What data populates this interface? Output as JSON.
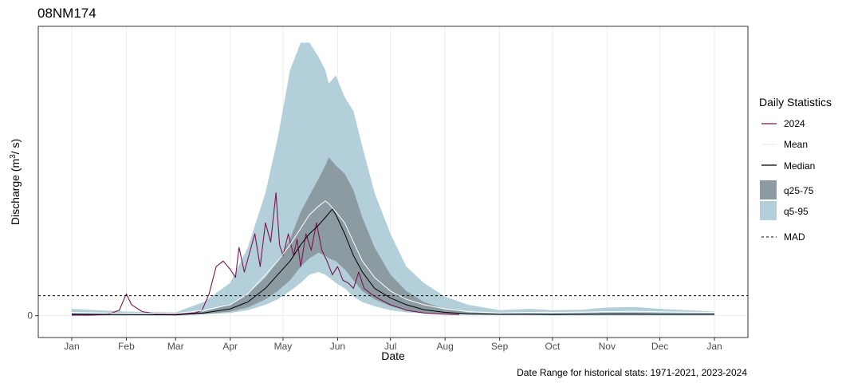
{
  "chart_data": {
    "type": "area",
    "title": "08NM174",
    "xlabel": "Date",
    "ylabel_prefix": "Discharge (m",
    "ylabel_sup": "3",
    "ylabel_suffix": "/ s)",
    "caption": "Date Range for historical stats: 1971-2021, 2023-2024",
    "x_ticks": [
      "Jan",
      "Feb",
      "Mar",
      "Apr",
      "May",
      "Jun",
      "Jul",
      "Aug",
      "Sep",
      "Oct",
      "Nov",
      "Dec",
      "Jan"
    ],
    "x_tick_days": [
      0,
      31,
      59,
      90,
      120,
      151,
      181,
      212,
      243,
      273,
      304,
      334,
      365
    ],
    "xlim": [
      -19,
      384
    ],
    "y_ticks": [
      0
    ],
    "ylim": [
      -0.08,
      1.06
    ],
    "y_units_note": "values relative to peak of q95 band (only tick 0 labelled)",
    "mad": 0.073,
    "legend": {
      "title": "Daily Statistics",
      "position": "right",
      "entries": [
        "2024",
        "Mean",
        "Median",
        "q25-75",
        "q5-95",
        "MAD"
      ]
    },
    "colors": {
      "q5_95": "#b3cfd9",
      "q25_75": "#8c9ba1",
      "median": "#000000",
      "mean": "#ffffff",
      "current_year": "#7a1453",
      "mad": "#000000",
      "grid": "#ebebeb",
      "panel_border": "#333333"
    },
    "series": {
      "q5_q95": {
        "name": "q5-95",
        "day": [
          0,
          31,
          59,
          75,
          90,
          100,
          110,
          117,
          124,
          130,
          135,
          140,
          144,
          146,
          150,
          155,
          160,
          165,
          172,
          181,
          190,
          200,
          212,
          225,
          243,
          260,
          273,
          290,
          304,
          320,
          334,
          350,
          365
        ],
        "low": [
          0.0,
          0.0,
          0.0,
          0.005,
          0.01,
          0.02,
          0.04,
          0.06,
          0.09,
          0.12,
          0.15,
          0.16,
          0.15,
          0.14,
          0.12,
          0.1,
          0.07,
          0.05,
          0.035,
          0.02,
          0.012,
          0.008,
          0.005,
          0.003,
          0.002,
          0.002,
          0.001,
          0.001,
          0.001,
          0.001,
          0.001,
          0.001,
          0.001
        ],
        "high": [
          0.025,
          0.015,
          0.012,
          0.05,
          0.12,
          0.25,
          0.45,
          0.65,
          0.9,
          1.0,
          1.0,
          0.95,
          0.9,
          0.85,
          0.88,
          0.8,
          0.75,
          0.62,
          0.45,
          0.3,
          0.18,
          0.12,
          0.07,
          0.04,
          0.02,
          0.025,
          0.02,
          0.022,
          0.03,
          0.032,
          0.025,
          0.02,
          0.015
        ]
      },
      "q25_q75": {
        "name": "q25-75",
        "day": [
          0,
          31,
          59,
          75,
          90,
          100,
          110,
          117,
          124,
          130,
          135,
          140,
          144,
          146,
          150,
          155,
          160,
          165,
          172,
          181,
          190,
          200,
          212,
          225,
          243,
          260,
          273,
          290,
          304,
          320,
          334,
          350,
          365
        ],
        "low": [
          0.003,
          0.003,
          0.002,
          0.005,
          0.015,
          0.03,
          0.06,
          0.09,
          0.13,
          0.18,
          0.21,
          0.23,
          0.22,
          0.21,
          0.2,
          0.17,
          0.13,
          0.09,
          0.06,
          0.035,
          0.02,
          0.012,
          0.007,
          0.004,
          0.003,
          0.003,
          0.003,
          0.003,
          0.003,
          0.003,
          0.003,
          0.003,
          0.003
        ],
        "high": [
          0.008,
          0.006,
          0.006,
          0.015,
          0.04,
          0.08,
          0.14,
          0.2,
          0.28,
          0.38,
          0.44,
          0.5,
          0.55,
          0.58,
          0.55,
          0.52,
          0.46,
          0.36,
          0.25,
          0.15,
          0.09,
          0.05,
          0.025,
          0.012,
          0.008,
          0.008,
          0.008,
          0.009,
          0.01,
          0.01,
          0.009,
          0.008,
          0.008
        ]
      },
      "median": {
        "name": "Median",
        "day": [
          0,
          31,
          59,
          75,
          90,
          100,
          110,
          117,
          124,
          130,
          135,
          140,
          144,
          148,
          150,
          155,
          160,
          165,
          172,
          181,
          190,
          200,
          212,
          225,
          243,
          260,
          273,
          290,
          304,
          320,
          334,
          350,
          365
        ],
        "values": [
          0.005,
          0.004,
          0.003,
          0.01,
          0.025,
          0.05,
          0.1,
          0.15,
          0.2,
          0.26,
          0.3,
          0.33,
          0.36,
          0.39,
          0.37,
          0.3,
          0.22,
          0.16,
          0.1,
          0.065,
          0.04,
          0.022,
          0.012,
          0.007,
          0.005,
          0.005,
          0.004,
          0.005,
          0.006,
          0.006,
          0.005,
          0.005,
          0.005
        ]
      },
      "mean": {
        "name": "Mean",
        "day": [
          0,
          31,
          59,
          75,
          90,
          100,
          110,
          117,
          124,
          130,
          135,
          140,
          144,
          146,
          150,
          155,
          160,
          165,
          172,
          181,
          190,
          200,
          212,
          225,
          243,
          260,
          273,
          290,
          304,
          320,
          334,
          350,
          365
        ],
        "values": [
          0.012,
          0.009,
          0.008,
          0.02,
          0.04,
          0.08,
          0.15,
          0.2,
          0.26,
          0.32,
          0.37,
          0.4,
          0.42,
          0.41,
          0.38,
          0.34,
          0.27,
          0.2,
          0.14,
          0.09,
          0.06,
          0.04,
          0.025,
          0.015,
          0.01,
          0.012,
          0.012,
          0.013,
          0.015,
          0.016,
          0.014,
          0.013,
          0.012
        ]
      },
      "current_year": {
        "name": "2024",
        "day": [
          0,
          10,
          20,
          27,
          31,
          34,
          40,
          48,
          55,
          62,
          70,
          74,
          78,
          82,
          86,
          90,
          93,
          95,
          98,
          101,
          104,
          107,
          110,
          113,
          116,
          118,
          120,
          123,
          126,
          128,
          130,
          133,
          136,
          139,
          142,
          145,
          148,
          151,
          154,
          157,
          160,
          163,
          166,
          170,
          175,
          181,
          190,
          200,
          210,
          220
        ],
        "values": [
          0.002,
          0.002,
          0.004,
          0.02,
          0.08,
          0.04,
          0.015,
          0.006,
          0.005,
          0.006,
          0.01,
          0.02,
          0.08,
          0.18,
          0.2,
          0.17,
          0.14,
          0.25,
          0.16,
          0.23,
          0.3,
          0.18,
          0.34,
          0.27,
          0.45,
          0.26,
          0.22,
          0.3,
          0.22,
          0.28,
          0.18,
          0.3,
          0.24,
          0.34,
          0.24,
          0.2,
          0.15,
          0.18,
          0.13,
          0.12,
          0.1,
          0.16,
          0.1,
          0.08,
          0.06,
          0.04,
          0.02,
          0.01,
          0.006,
          0.004
        ]
      }
    }
  }
}
